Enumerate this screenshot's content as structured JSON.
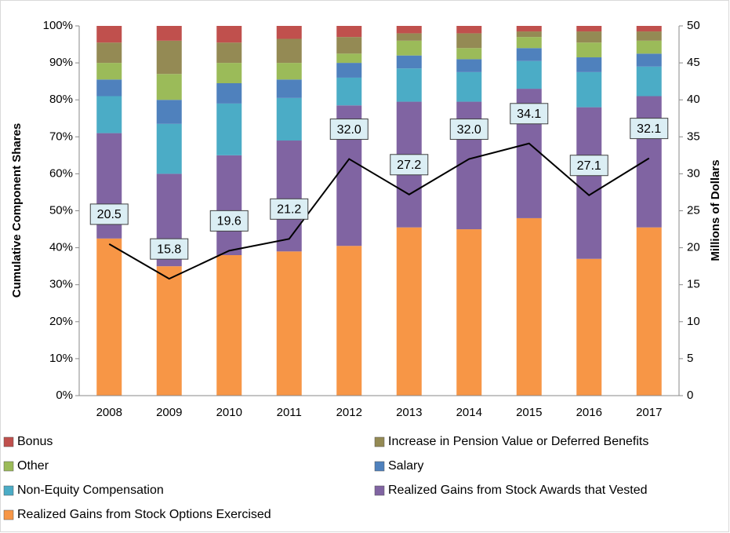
{
  "chart_data": {
    "type": "bar",
    "stacked": true,
    "ylabel": "Cumulative Component Shares",
    "y2label": "Millions of Dollars",
    "categories": [
      "2008",
      "2009",
      "2010",
      "2011",
      "2012",
      "2013",
      "2014",
      "2015",
      "2016",
      "2017"
    ],
    "ylim": [
      0,
      100
    ],
    "yticks": [
      {
        "value": 0,
        "label": "0%"
      },
      {
        "value": 10,
        "label": "10%"
      },
      {
        "value": 20,
        "label": "20%"
      },
      {
        "value": 30,
        "label": "30%"
      },
      {
        "value": 40,
        "label": "40%"
      },
      {
        "value": 50,
        "label": "50%"
      },
      {
        "value": 60,
        "label": "60%"
      },
      {
        "value": 70,
        "label": "70%"
      },
      {
        "value": 80,
        "label": "80%"
      },
      {
        "value": 90,
        "label": "90%"
      },
      {
        "value": 100,
        "label": "100%"
      }
    ],
    "y2lim": [
      0,
      50
    ],
    "y2ticks": [
      0,
      5,
      10,
      15,
      20,
      25,
      30,
      35,
      40,
      45,
      50
    ],
    "series": [
      {
        "name": "Bonus",
        "color": "#c0504d",
        "values": [
          4.5,
          4,
          4.5,
          3.5,
          3,
          2,
          2,
          1.5,
          1.5,
          1.5
        ]
      },
      {
        "name": "Increase in Pension Value or Deferred Benefits",
        "color": "#948a54",
        "values": [
          5.5,
          9,
          5.5,
          6.5,
          4.5,
          2,
          4,
          1.5,
          3,
          2.5
        ]
      },
      {
        "name": "Other",
        "color": "#9bbb59",
        "values": [
          4.5,
          7,
          5.5,
          4.5,
          2.5,
          4,
          3,
          3,
          4,
          3.5
        ]
      },
      {
        "name": "Salary",
        "color": "#4f81bd",
        "values": [
          4.5,
          6.5,
          5.5,
          5,
          4,
          3.5,
          3.5,
          3.5,
          4,
          3.5
        ]
      },
      {
        "name": "Non-Equity Compensation",
        "color": "#4bacc6",
        "values": [
          10,
          13.5,
          14,
          11.5,
          7.5,
          9,
          8,
          7.5,
          9.5,
          8
        ]
      },
      {
        "name": "Realized Gains from Stock Awards that Vested",
        "color": "#8064a2",
        "values": [
          28.5,
          25,
          27,
          30,
          38,
          34,
          34.5,
          35,
          41,
          35.5
        ]
      },
      {
        "name": "Realized Gains from Stock Options Exercised",
        "color": "#f79646",
        "values": [
          42.5,
          35,
          38,
          39,
          40.5,
          45.5,
          45,
          48,
          37,
          45.5
        ]
      }
    ],
    "line": {
      "axis": "y2",
      "color": "#000000",
      "values": [
        20.5,
        15.8,
        19.6,
        21.2,
        32.0,
        27.2,
        32.0,
        34.1,
        27.1,
        32.1
      ],
      "value_labels": [
        "20.5",
        "15.8",
        "19.6",
        "21.2",
        "32.0",
        "27.2",
        "32.0",
        "34.1",
        "27.1",
        "32.1"
      ]
    }
  }
}
